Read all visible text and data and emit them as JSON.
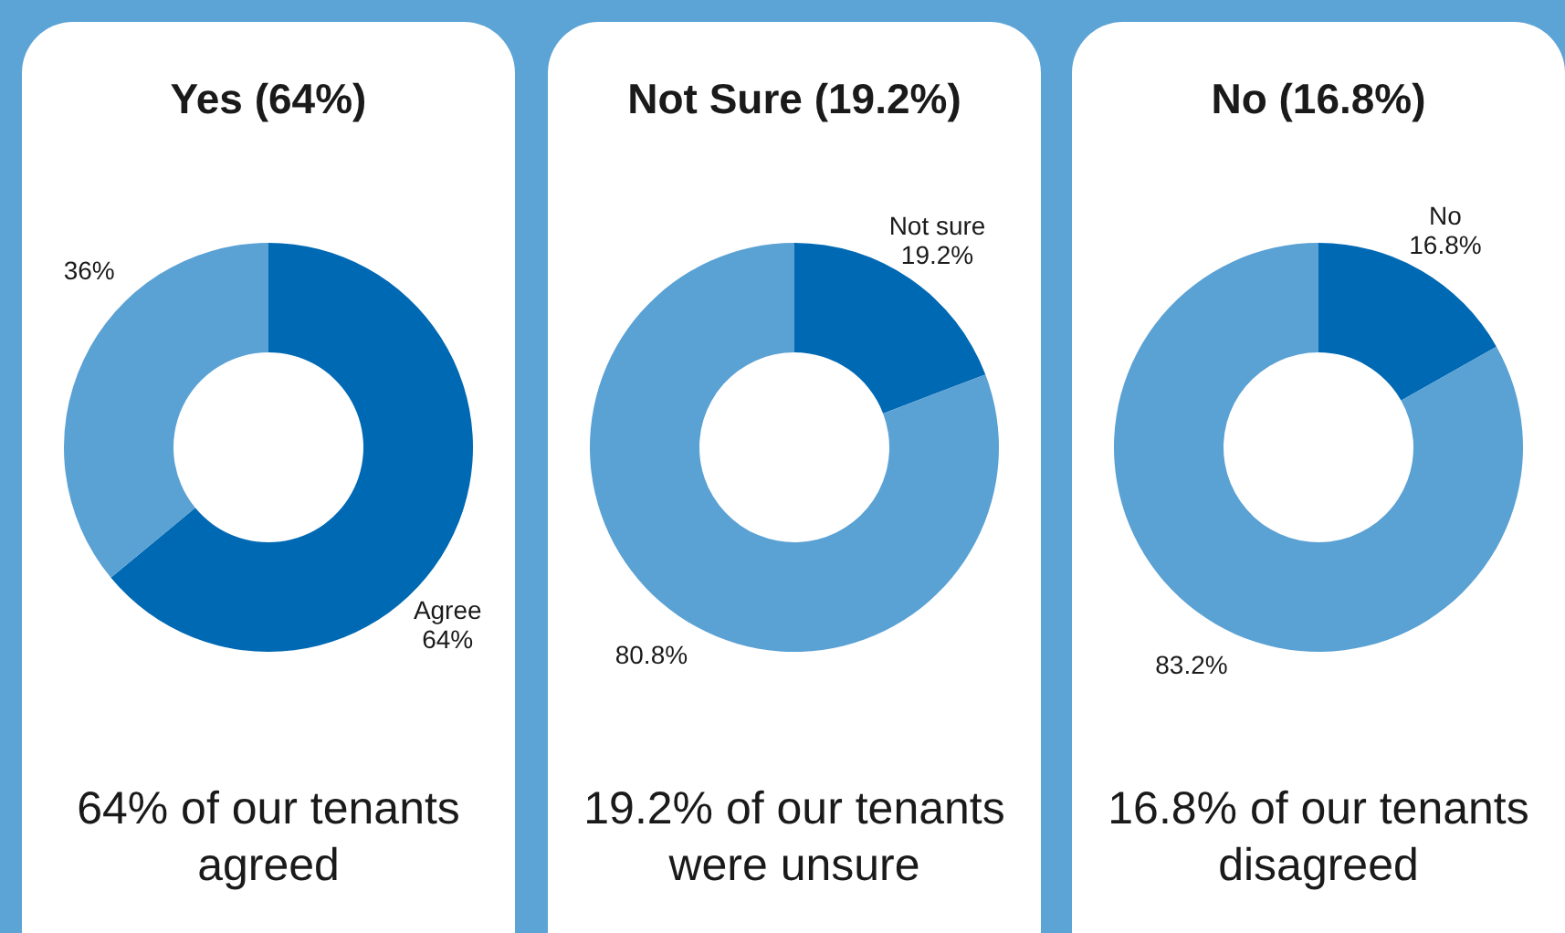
{
  "chart_data": [
    {
      "type": "donut",
      "title": "Yes (64%)",
      "categories": [
        "Agree",
        null
      ],
      "values": [
        64,
        36
      ],
      "value_labels": [
        "64%",
        "36%"
      ],
      "colors": [
        "#0069b4",
        "#5aa1d4"
      ],
      "annotations": [
        "64% of our tenants agreed"
      ]
    },
    {
      "type": "donut",
      "title": "Not Sure (19.2%)",
      "categories": [
        "Not sure",
        null
      ],
      "values": [
        19.2,
        80.8
      ],
      "value_labels": [
        "19.2%",
        "80.8%"
      ],
      "colors": [
        "#0069b4",
        "#5aa1d4"
      ],
      "annotations": [
        "19.2% of our tenants were unsure"
      ]
    },
    {
      "type": "donut",
      "title": "No (16.8%)",
      "categories": [
        "No",
        null
      ],
      "values": [
        16.8,
        83.2
      ],
      "value_labels": [
        "16.8%",
        "83.2%"
      ],
      "colors": [
        "#0069b4",
        "#5aa1d4"
      ],
      "annotations": [
        "16.8% of our tenants disagreed"
      ]
    }
  ]
}
